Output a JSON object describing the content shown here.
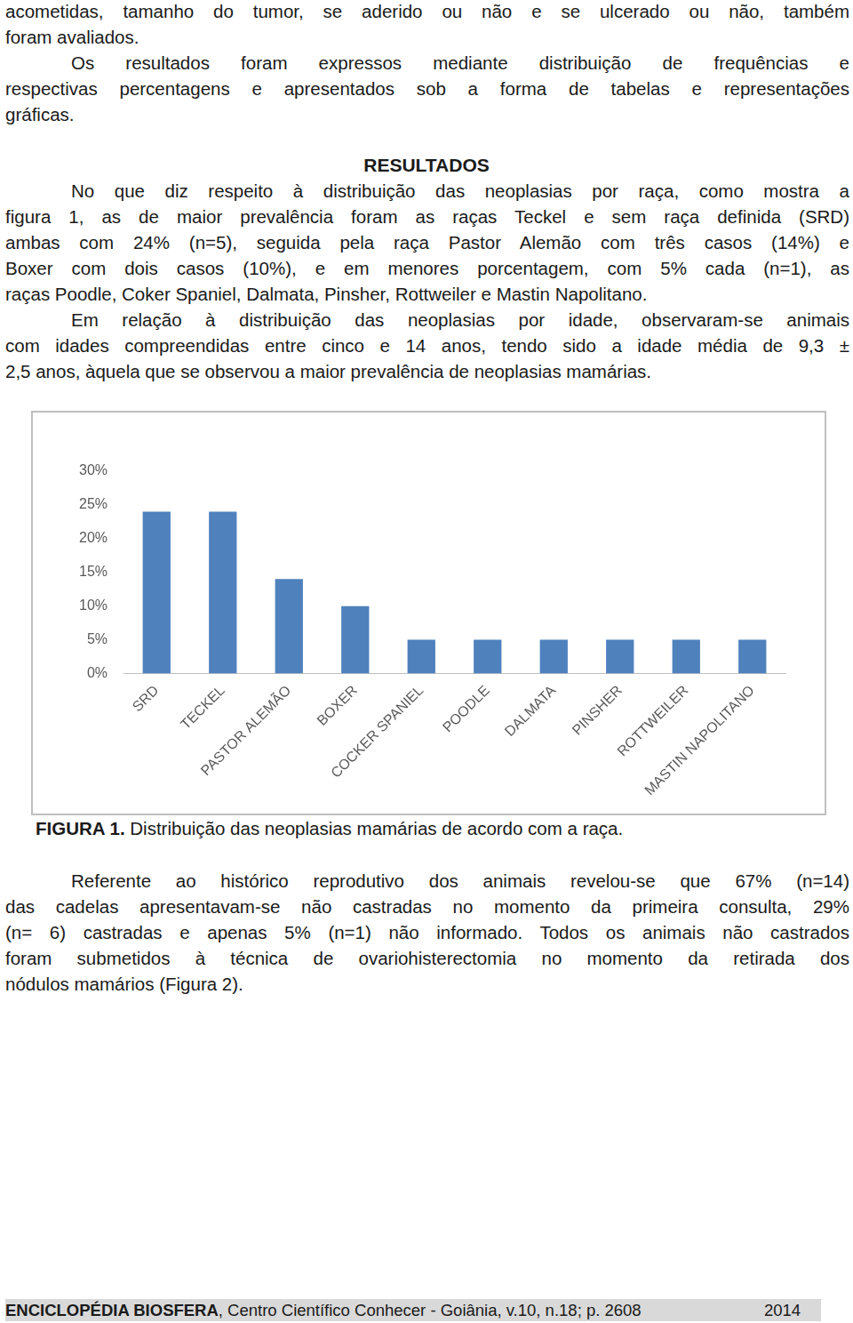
{
  "text_before": [
    [
      "acometidas, tamanho do tumor, se aderido ou não e se ulcerado ou não, também",
      "foram avaliados."
    ],
    [
      "Os resultados foram expressos mediante distribuição de frequências e",
      "respectivas percentagens e apresentados sob a forma de tabelas e representações",
      "gráficas."
    ]
  ],
  "heading": "RESULTADOS",
  "text_results": [
    [
      "No que diz respeito à distribuição das neoplasias por raça, como mostra a",
      "figura 1, as de maior prevalência foram as raças Teckel e sem raça definida (SRD)",
      "ambas com 24% (n=5), seguida pela raça Pastor Alemão com três casos (14%) e",
      "Boxer com dois casos (10%), e em menores porcentagem, com 5% cada (n=1), as",
      "raças Poodle, Coker Spaniel, Dalmata, Pinsher, Rottweiler e Mastin Napolitano."
    ],
    [
      "Em relação à distribuição das neoplasias por idade, observaram-se animais",
      "com idades compreendidas entre cinco e 14 anos, tendo sido a idade média de 9,3 ±",
      "2,5 anos, àquela que se observou a maior prevalência de neoplasias mamárias."
    ]
  ],
  "chart_data": {
    "type": "bar",
    "categories": [
      "SRD",
      "TECKEL",
      "PASTOR ALEMÃO",
      "BOXER",
      "COCKER SPANIEL",
      "POODLE",
      "DALMATA",
      "PINSHER",
      "ROTTWEILER",
      "MASTIN NAPOLITANO"
    ],
    "values": [
      24,
      24,
      14,
      10,
      5,
      5,
      5,
      5,
      5,
      5
    ],
    "color": "#4f81bd",
    "ylim": [
      0,
      30
    ],
    "yticks": [
      {
        "value": 0,
        "label": "0%"
      },
      {
        "value": 5,
        "label": "5%"
      },
      {
        "value": 10,
        "label": "10%"
      },
      {
        "value": 15,
        "label": "15%"
      },
      {
        "value": 20,
        "label": "20%"
      },
      {
        "value": 25,
        "label": "25%"
      },
      {
        "value": 30,
        "label": "30%"
      }
    ],
    "grid": false
  },
  "caption": {
    "label": "FIGURA 1.",
    "text": "Distribuição das neoplasias mamárias de acordo com a raça."
  },
  "text_after": [
    [
      "Referente ao histórico reprodutivo dos animais revelou-se que 67% (n=14)",
      "das cadelas apresentavam-se não castradas no momento da primeira consulta, 29%",
      "(n= 6) castradas e apenas 5% (n=1) não informado. Todos os animais não castrados",
      "foram submetidos à técnica de ovariohisterectomia no momento da retirada dos",
      "nódulos mamários (Figura 2)."
    ]
  ],
  "footer": {
    "journal": "ENCICLOPÉDIA BIOSFERA",
    "text": ", Centro Científico Conhecer - Goiânia, v.10, n.18; p. 2608",
    "year": "2014"
  }
}
